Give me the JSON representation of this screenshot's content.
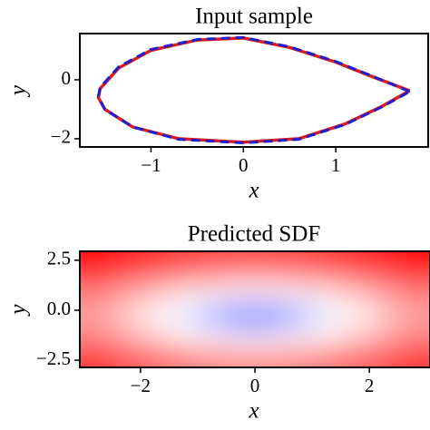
{
  "chart_data": [
    {
      "type": "line",
      "title": "Input sample",
      "xlabel": "x",
      "ylabel": "y",
      "xlim": [
        -1.77,
        2.0
      ],
      "ylim": [
        -2.28,
        1.57
      ],
      "xticks": [
        {
          "value": -1,
          "label": "−1"
        },
        0,
        1
      ],
      "yticks": [
        {
          "value": -2,
          "label": "−2"
        },
        0
      ],
      "x": [
        1.8,
        1.4,
        1.0,
        0.5,
        0,
        -0.5,
        -1.0,
        -1.35,
        -1.55,
        -1.57,
        -1.5,
        -1.2,
        -0.7,
        0,
        0.6,
        1.1,
        1.5,
        1.8
      ],
      "series": [
        {
          "color": "#dd1c1c",
          "linestyle": "solid",
          "values": [
            -0.37,
            0.1,
            0.6,
            1.1,
            1.42,
            1.35,
            1.0,
            0.4,
            -0.3,
            -0.6,
            -1.0,
            -1.6,
            -2.0,
            -2.12,
            -2.0,
            -1.5,
            -0.9,
            -0.37
          ]
        },
        {
          "color": "#1f1fcc",
          "linestyle": "dashed",
          "values": [
            -0.4,
            0.12,
            0.62,
            1.12,
            1.44,
            1.37,
            1.03,
            0.44,
            -0.26,
            -0.58,
            -1.0,
            -1.6,
            -2.02,
            -2.14,
            -2.02,
            -1.52,
            -0.92,
            -0.4
          ]
        }
      ]
    },
    {
      "type": "heatmap",
      "title": "Predicted SDF",
      "xlabel": "x",
      "ylabel": "y",
      "xlim": [
        -3.06,
        3.06
      ],
      "ylim": [
        -2.86,
        2.95
      ],
      "xticks": [
        {
          "value": -2,
          "label": "−2"
        },
        0,
        2
      ],
      "yticks": [
        {
          "value": -2.5,
          "label": "−2.5"
        },
        {
          "value": 0,
          "label": "0.0"
        },
        2.5
      ],
      "x": [
        -2.75,
        -2.25,
        -1.75,
        -1.25,
        -0.75,
        -0.25,
        0.25,
        0.75,
        1.25,
        1.75,
        2.25,
        2.75
      ],
      "y": [
        2.55,
        1.82,
        1.09,
        0.36,
        -0.36,
        -1.09,
        -1.82,
        -2.55
      ],
      "values": [
        [
          1.93,
          1.76,
          1.61,
          1.5,
          1.42,
          1.38,
          1.38,
          1.42,
          1.5,
          1.61,
          1.76,
          1.93
        ],
        [
          1.46,
          1.26,
          1.08,
          0.93,
          0.83,
          0.77,
          0.77,
          0.83,
          0.93,
          1.08,
          1.26,
          1.46
        ],
        [
          1.07,
          0.82,
          0.59,
          0.4,
          0.25,
          0.17,
          0.17,
          0.25,
          0.4,
          0.59,
          0.82,
          1.07
        ],
        [
          0.8,
          0.51,
          0.22,
          -0.04,
          -0.28,
          -0.43,
          -0.43,
          -0.28,
          -0.04,
          0.22,
          0.51,
          0.8
        ],
        [
          0.72,
          0.41,
          0.1,
          -0.22,
          -0.53,
          -0.84,
          -0.84,
          -0.53,
          -0.22,
          0.1,
          0.41,
          0.72
        ],
        [
          0.84,
          0.55,
          0.28,
          0.02,
          -0.19,
          -0.32,
          -0.32,
          -0.19,
          0.02,
          0.28,
          0.55,
          0.84
        ],
        [
          1.14,
          0.89,
          0.67,
          0.49,
          0.35,
          0.28,
          0.28,
          0.35,
          0.49,
          0.67,
          0.89,
          1.14
        ],
        [
          1.54,
          1.34,
          1.17,
          1.03,
          0.93,
          0.88,
          0.88,
          0.93,
          1.03,
          1.17,
          1.34,
          1.54
        ]
      ]
    }
  ]
}
